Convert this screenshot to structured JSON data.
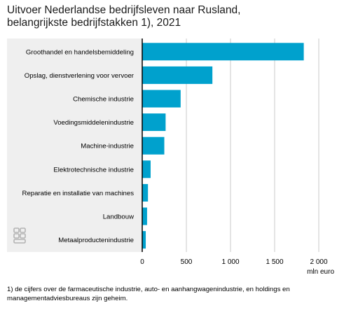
{
  "title_line1": "Uitvoer Nederlandse bedrijfsleven naar Rusland,",
  "title_line2": "belangrijkste bedrijfstakken 1), 2021",
  "footnote": "1) de cijfers over de farmaceutische industrie, auto- en aanhangwagenindustrie, en holdings en managementadviesbureaus zijn geheim.",
  "colors": {
    "bar": "#00a1cd",
    "panel": "#efefef",
    "grid": "#c8c8c8",
    "axis": "#000000",
    "logo": "#b3b3b3"
  },
  "logo_icon": "cbs-logo-icon",
  "chart_data": {
    "type": "bar",
    "orientation": "horizontal",
    "categories": [
      "Groothandel en handelsbemiddeling",
      "Opslag, dienstverlening voor vervoer",
      "Chemische industrie",
      "Voedingsmiddelenindustrie",
      "Machine-industrie",
      "Elektrotechnische industrie",
      "Reparatie en installatie van machines",
      "Landbouw",
      "Metaalproductenindustrie"
    ],
    "values": [
      1830,
      795,
      435,
      265,
      250,
      95,
      65,
      55,
      40
    ],
    "xlim": [
      0,
      2100
    ],
    "xticks": [
      0,
      500,
      1000,
      1500,
      2000
    ],
    "xtick_labels": [
      "0",
      "500",
      "1 000",
      "1 500",
      "2 000"
    ],
    "xlabel": "mln euro",
    "grid": true
  }
}
